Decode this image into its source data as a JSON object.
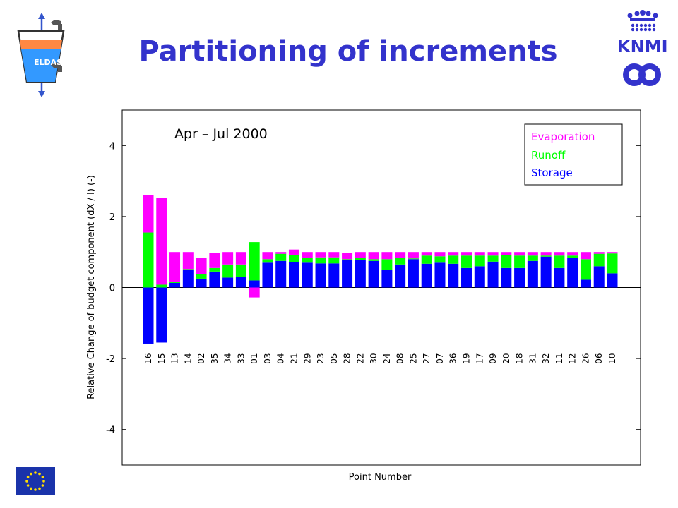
{
  "slide": {
    "title": "Partitioning of increments"
  },
  "logos": {
    "eldas_text": "ELDAS",
    "knmi_text": "KNMI"
  },
  "colors": {
    "title": "#3333cc",
    "evaporation": "#ff00ff",
    "runoff": "#00ff00",
    "storage": "#0000ff"
  },
  "chart_data": {
    "type": "bar",
    "stacked": true,
    "annotation": "Apr – Jul 2000",
    "xlabel": "Point Number",
    "ylabel": "Relative Change of budget component (dX / I) (-)",
    "ylim": [
      -5,
      5
    ],
    "yticks": [
      4,
      2,
      0,
      -2,
      -4
    ],
    "grid": false,
    "legend_position": "top-right",
    "categories": [
      "16",
      "15",
      "13",
      "14",
      "02",
      "35",
      "34",
      "33",
      "01",
      "03",
      "04",
      "21",
      "29",
      "23",
      "05",
      "28",
      "22",
      "30",
      "24",
      "08",
      "25",
      "27",
      "07",
      "36",
      "19",
      "17",
      "09",
      "20",
      "18",
      "31",
      "32",
      "11",
      "12",
      "26",
      "06",
      "10"
    ],
    "series": [
      {
        "name": "Evaporation",
        "color": "#ff00ff",
        "values": [
          1.05,
          2.45,
          0.85,
          0.48,
          0.45,
          0.42,
          0.35,
          0.35,
          -0.28,
          0.2,
          0.05,
          0.15,
          0.17,
          0.15,
          0.15,
          0.18,
          0.17,
          0.2,
          0.2,
          0.17,
          0.18,
          0.1,
          0.12,
          0.1,
          0.1,
          0.1,
          0.1,
          0.08,
          0.1,
          0.1,
          0.1,
          0.1,
          0.1,
          0.2,
          0.05,
          0.04
        ]
      },
      {
        "name": "Runoff",
        "color": "#00ff00",
        "values": [
          1.55,
          0.08,
          0.02,
          0.02,
          0.13,
          0.1,
          0.37,
          0.35,
          1.08,
          0.1,
          0.2,
          0.2,
          0.13,
          0.17,
          0.17,
          0.03,
          0.05,
          0.05,
          0.3,
          0.18,
          0.02,
          0.23,
          0.18,
          0.23,
          0.35,
          0.3,
          0.17,
          0.37,
          0.35,
          0.15,
          0.03,
          0.35,
          0.07,
          0.58,
          0.35,
          0.56
        ]
      },
      {
        "name": "Storage",
        "color": "#0000ff",
        "values": [
          -1.58,
          -1.55,
          0.13,
          0.5,
          0.25,
          0.45,
          0.28,
          0.3,
          0.2,
          0.7,
          0.75,
          0.72,
          0.7,
          0.68,
          0.68,
          0.77,
          0.78,
          0.75,
          0.5,
          0.65,
          0.8,
          0.67,
          0.7,
          0.67,
          0.55,
          0.6,
          0.73,
          0.55,
          0.55,
          0.75,
          0.87,
          0.55,
          0.83,
          0.22,
          0.6,
          0.4
        ]
      }
    ]
  }
}
